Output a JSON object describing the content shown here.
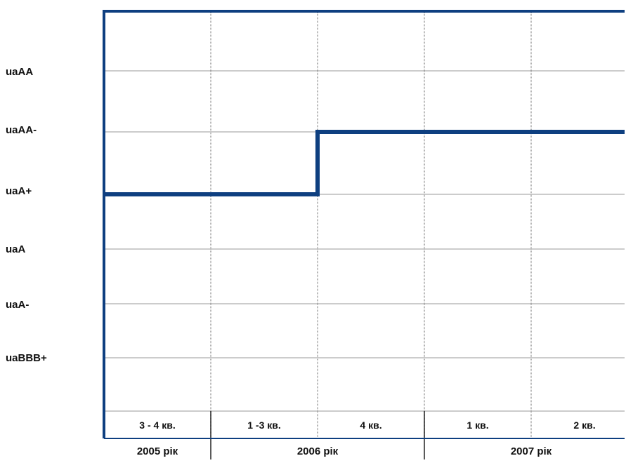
{
  "chart_data": {
    "type": "line",
    "step": true,
    "y_categories": [
      "uaBBB+",
      "uaA-",
      "uaA",
      "uaA+",
      "uaAA-",
      "uaAA"
    ],
    "x_categories": [
      "3 - 4 кв.",
      "1 -3 кв.",
      "4 кв.",
      "1 кв.",
      "2 кв."
    ],
    "x_groups": [
      {
        "label": "2005 рік",
        "span": 1
      },
      {
        "label": "2006 рік",
        "span": 2
      },
      {
        "label": "2007 рік",
        "span": 2
      }
    ],
    "series": [
      {
        "values": [
          "uaA+",
          "uaA+",
          "uaAA-",
          "uaAA-",
          "uaAA-"
        ]
      }
    ],
    "grid": true,
    "legend": false
  },
  "colors": {
    "line": "#0e3f80",
    "axis": "#0e3f80",
    "grid": "#9a9a9a",
    "text": "#111111"
  }
}
